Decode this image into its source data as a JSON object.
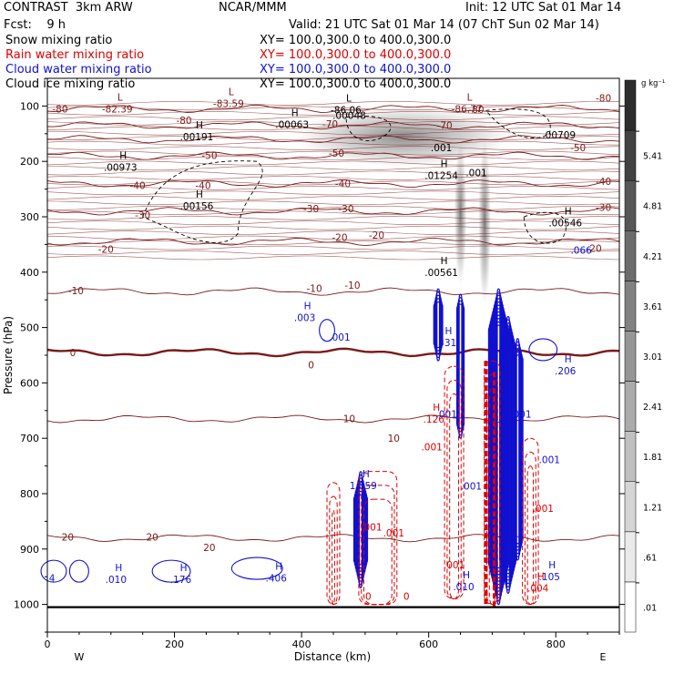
{
  "header": {
    "model": "CONTRAST  3km ARW",
    "org": "NCAR/MMM",
    "init": "Init: 12 UTC Sat 01 Mar 14",
    "fcst": "Fcst:    9 h",
    "valid": "Valid: 21 UTC Sat 01 Mar 14 (07 ChT Sun 02 Mar 14)"
  },
  "fields": [
    {
      "name": "Snow mixing ratio",
      "xy": "XY= 100.0,300.0 to 400.0,300.0",
      "color": "#000000"
    },
    {
      "name": "Rain water mixing ratio",
      "xy": "XY= 100.0,300.0 to 400.0,300.0",
      "color": "#dd0000"
    },
    {
      "name": "Cloud water mixing ratio",
      "xy": "XY= 100.0,300.0 to 400.0,300.0",
      "color": "#1010d0"
    },
    {
      "name": "Cloud ice mixing ratio",
      "xy": "XY= 100.0,300.0 to 400.0,300.0",
      "color": "#000000"
    }
  ],
  "chart_data": {
    "type": "heatmap",
    "ylabel": "Pressure (hPa)",
    "xlabel": "Distance (km)",
    "xlim": [
      0,
      900
    ],
    "ylim": [
      1050,
      50
    ],
    "xticks": [
      0,
      200,
      400,
      600,
      800
    ],
    "yticks": [
      100,
      200,
      300,
      400,
      500,
      600,
      700,
      800,
      900,
      1000
    ],
    "x_end_labels": {
      "left": "W",
      "right": "E"
    },
    "colorbar": {
      "unit": "g kg⁻¹",
      "levels": [
        ".01",
        ".61",
        "1.21",
        "1.81",
        "2.41",
        "3.01",
        "3.61",
        "4.21",
        "4.81",
        "5.41"
      ]
    },
    "isotherms": [
      {
        "label": "-80",
        "p": 105
      },
      {
        "label": "-70",
        "p": 135
      },
      {
        "label": "-60",
        "p": 160
      },
      {
        "label": "-50",
        "p": 190
      },
      {
        "label": "-40",
        "p": 240
      },
      {
        "label": "-30",
        "p": 290
      },
      {
        "label": "-20",
        "p": 345
      },
      {
        "label": "-10",
        "p": 435
      },
      {
        "label": "0",
        "p": 545
      },
      {
        "label": "10",
        "p": 665
      },
      {
        "label": "20",
        "p": 880
      }
    ],
    "temperature_labels": [
      {
        "text": "-80",
        "x": 20,
        "p": 105
      },
      {
        "text": "-80",
        "x": 875,
        "p": 85
      },
      {
        "text": "-80",
        "x": 215,
        "p": 126
      },
      {
        "text": "-80",
        "x": 675,
        "p": 106
      },
      {
        "text": "-70",
        "x": 445,
        "p": 132
      },
      {
        "text": "-70",
        "x": 625,
        "p": 135
      },
      {
        "text": "-50",
        "x": 255,
        "p": 189
      },
      {
        "text": "-50",
        "x": 455,
        "p": 185
      },
      {
        "text": "-50",
        "x": 835,
        "p": 175
      },
      {
        "text": "-40",
        "x": 142,
        "p": 243
      },
      {
        "text": "-40",
        "x": 245,
        "p": 243
      },
      {
        "text": "-40",
        "x": 465,
        "p": 240
      },
      {
        "text": "-40",
        "x": 875,
        "p": 236
      },
      {
        "text": "-30",
        "x": 150,
        "p": 297
      },
      {
        "text": "-30",
        "x": 415,
        "p": 285
      },
      {
        "text": "-30",
        "x": 470,
        "p": 285
      },
      {
        "text": "-30",
        "x": 875,
        "p": 283
      },
      {
        "text": "-20",
        "x": 92,
        "p": 358
      },
      {
        "text": "-20",
        "x": 460,
        "p": 337
      },
      {
        "text": "-20",
        "x": 518,
        "p": 333
      },
      {
        "text": "-20",
        "x": 860,
        "p": 357
      },
      {
        "text": "-10",
        "x": 45,
        "p": 433
      },
      {
        "text": "-10",
        "x": 420,
        "p": 429
      },
      {
        "text": "-10",
        "x": 480,
        "p": 423
      },
      {
        "text": "0",
        "x": 40,
        "p": 545
      },
      {
        "text": "0",
        "x": 415,
        "p": 567
      },
      {
        "text": "10",
        "x": 475,
        "p": 664
      },
      {
        "text": "10",
        "x": 545,
        "p": 700
      },
      {
        "text": "20",
        "x": 32,
        "p": 878
      },
      {
        "text": "20",
        "x": 165,
        "p": 878
      },
      {
        "text": "20",
        "x": 255,
        "p": 897
      }
    ],
    "extrema": [
      {
        "text": "-82.39",
        "x": 110,
        "p": 105,
        "color": "#7a1a1a",
        "marker": "L"
      },
      {
        "text": "-83.59",
        "x": 285,
        "p": 95,
        "color": "#7a1a1a",
        "marker": "L"
      },
      {
        "text": "-86.06",
        "x": 470,
        "p": 107,
        "color": "#000000",
        "marker": "L"
      },
      {
        "text": "-86.77",
        "x": 660,
        "p": 105,
        "color": "#7a1a1a",
        "marker": "L"
      },
      {
        "text": ".00048",
        "x": 475,
        "p": 117,
        "color": "#000000",
        "marker": ""
      },
      {
        "text": ".00191",
        "x": 235,
        "p": 155,
        "color": "#000000",
        "marker": "H"
      },
      {
        "text": ".00063",
        "x": 385,
        "p": 133,
        "color": "#000000",
        "marker": "H"
      },
      {
        "text": ".00709",
        "x": 805,
        "p": 152,
        "color": "#000000",
        "marker": ""
      },
      {
        "text": ".00973",
        "x": 115,
        "p": 210,
        "color": "#000000",
        "marker": "H"
      },
      {
        "text": ".00156",
        "x": 235,
        "p": 280,
        "color": "#000000",
        "marker": "H"
      },
      {
        "text": ".01254",
        "x": 620,
        "p": 225,
        "color": "#000000",
        "marker": "H"
      },
      {
        "text": ".001",
        "x": 620,
        "p": 175,
        "color": "#000000",
        "marker": ""
      },
      {
        "text": ".001",
        "x": 675,
        "p": 220,
        "color": "#000000",
        "marker": ""
      },
      {
        "text": ".00546",
        "x": 815,
        "p": 311,
        "color": "#000000",
        "marker": "H"
      },
      {
        "text": ".066",
        "x": 840,
        "p": 360,
        "color": "#1010d0",
        "marker": ""
      },
      {
        "text": ".00561",
        "x": 620,
        "p": 400,
        "color": "#000000",
        "marker": "H"
      },
      {
        "text": ".003",
        "x": 405,
        "p": 482,
        "color": "#1010d0",
        "marker": "H"
      },
      {
        "text": ".001",
        "x": 460,
        "p": 517,
        "color": "#1010d0",
        "marker": ""
      },
      {
        "text": ".331",
        "x": 627,
        "p": 527,
        "color": "#1010d0",
        "marker": "H"
      },
      {
        "text": ".206",
        "x": 815,
        "p": 578,
        "color": "#1010d0",
        "marker": "H"
      },
      {
        "text": ".126",
        "x": 608,
        "p": 665,
        "color": "#dd0000",
        "marker": "H"
      },
      {
        "text": ".001",
        "x": 628,
        "p": 656,
        "color": "#1010d0",
        "marker": ""
      },
      {
        "text": ".001",
        "x": 745,
        "p": 656,
        "color": "#1010d0",
        "marker": ""
      },
      {
        "text": ".001",
        "x": 605,
        "p": 715,
        "color": "#dd0000",
        "marker": ""
      },
      {
        "text": ".001",
        "x": 790,
        "p": 738,
        "color": "#1010d0",
        "marker": ""
      },
      {
        "text": ".001",
        "x": 667,
        "p": 786,
        "color": "#1010d0",
        "marker": ""
      },
      {
        "text": ".001",
        "x": 780,
        "p": 826,
        "color": "#dd0000",
        "marker": ""
      },
      {
        "text": "1.059",
        "x": 497,
        "p": 785,
        "color": "#1010d0",
        "marker": "H"
      },
      {
        "text": ".001",
        "x": 510,
        "p": 860,
        "color": "#dd0000",
        "marker": ""
      },
      {
        "text": ".001",
        "x": 545,
        "p": 871,
        "color": "#dd0000",
        "marker": ""
      },
      {
        "text": ".001",
        "x": 640,
        "p": 928,
        "color": "#dd0000",
        "marker": ""
      },
      {
        "text": ".010",
        "x": 108,
        "p": 955,
        "color": "#1010d0",
        "marker": "H"
      },
      {
        "text": ".176",
        "x": 210,
        "p": 955,
        "color": "#1010d0",
        "marker": "H"
      },
      {
        "text": ".406",
        "x": 360,
        "p": 952,
        "color": "#1010d0",
        "marker": "H"
      },
      {
        "text": ".010",
        "x": 655,
        "p": 968,
        "color": "#1010d0",
        "marker": "H"
      },
      {
        "text": ".105",
        "x": 790,
        "p": 950,
        "color": "#1010d0",
        "marker": "H"
      },
      {
        "text": ".004",
        "x": 772,
        "p": 970,
        "color": "#dd0000",
        "marker": "H"
      },
      {
        "text": ".4",
        "x": 5,
        "p": 952,
        "color": "#1010d0",
        "marker": ""
      },
      {
        "text": "0",
        "x": 505,
        "p": 985,
        "color": "#dd0000",
        "marker": ""
      },
      {
        "text": "0",
        "x": 565,
        "p": 985,
        "color": "#dd0000",
        "marker": ""
      }
    ],
    "shading": [
      {
        "x": 560,
        "p": 155,
        "rx": 170,
        "rp": 55,
        "v": 0.7
      },
      {
        "x": 650,
        "p": 295,
        "rx": 10,
        "rp": 130,
        "v": 0.8
      },
      {
        "x": 688,
        "p": 310,
        "rx": 10,
        "rp": 150,
        "v": 0.8
      }
    ]
  }
}
